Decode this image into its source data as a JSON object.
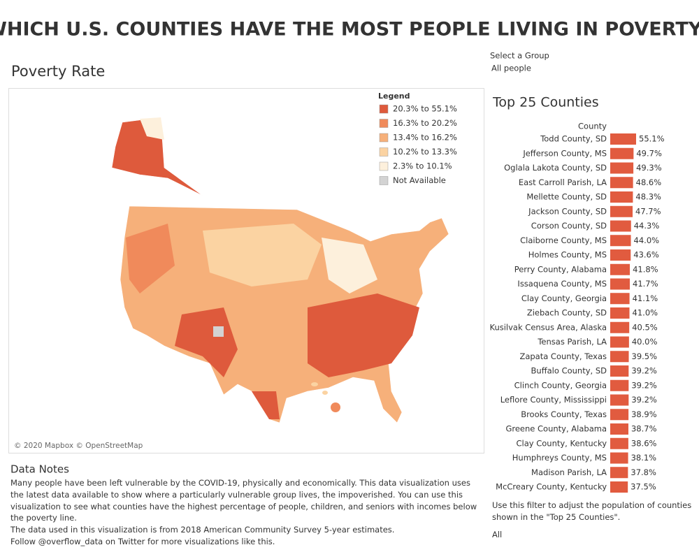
{
  "title": "WHICH U.S. COUNTIES HAVE THE MOST PEOPLE LIVING IN POVERTY?",
  "group_filter": {
    "label": "Select a Group",
    "value": "All people"
  },
  "map": {
    "title": "Poverty Rate",
    "legend_title": "Legend",
    "legend": [
      {
        "label": "20.3% to 55.1%",
        "color": "#de5a3c"
      },
      {
        "label": "16.3% to 20.2%",
        "color": "#f08a5b"
      },
      {
        "label": "13.4% to 16.2%",
        "color": "#f6b07a"
      },
      {
        "label": "10.2% to 13.3%",
        "color": "#fbd3a2"
      },
      {
        "label": "2.3% to 10.1%",
        "color": "#fdf0dc"
      },
      {
        "label": "Not Available",
        "color": "#d3d3d3"
      }
    ],
    "attribution": "© 2020 Mapbox © OpenStreetMap"
  },
  "chart_data": {
    "type": "bar",
    "orientation": "horizontal",
    "title": "Top 25 Counties",
    "axis_label": "County",
    "color": "#e15b3f",
    "categories": [
      "Todd County, SD",
      "Jefferson County, MS",
      "Oglala Lakota County, SD",
      "East Carroll Parish, LA",
      "Mellette County, SD",
      "Jackson County, SD",
      "Corson County, SD",
      "Claiborne County, MS",
      "Holmes County, MS",
      "Perry County, Alabama",
      "Issaquena County, MS",
      "Clay County, Georgia",
      "Ziebach County, SD",
      "Kusilvak Census Area, Alaska",
      "Tensas Parish, LA",
      "Zapata County, Texas",
      "Buffalo County, SD",
      "Clinch County, Georgia",
      "Leflore County, Mississippi",
      "Brooks County, Texas",
      "Greene County, Alabama",
      "Clay County, Kentucky",
      "Humphreys County, MS",
      "Madison Parish, LA",
      "McCreary County, Kentucky"
    ],
    "values": [
      55.1,
      49.7,
      49.3,
      48.6,
      48.3,
      47.7,
      44.3,
      44.0,
      43.6,
      41.8,
      41.7,
      41.1,
      41.0,
      40.5,
      40.0,
      39.5,
      39.2,
      39.2,
      39.2,
      38.9,
      38.7,
      38.6,
      38.1,
      37.8,
      37.5
    ],
    "value_labels": [
      "55.1%",
      "49.7%",
      "49.3%",
      "48.6%",
      "48.3%",
      "47.7%",
      "44.3%",
      "44.0%",
      "43.6%",
      "41.8%",
      "41.7%",
      "41.1%",
      "41.0%",
      "40.5%",
      "40.0%",
      "39.5%",
      "39.2%",
      "39.2%",
      "39.2%",
      "38.9%",
      "38.7%",
      "38.6%",
      "38.1%",
      "37.8%",
      "37.5%"
    ]
  },
  "notes": {
    "title": "Data Notes",
    "paragraphs": [
      "Many people have been left vulnerable by the COVID-19, physically and economically. This data visualization uses the latest data available to show where a particularly vulnerable group lives, the impoverished. You can use this visualization to see what counties have the highest percentage of people, children, and seniors with incomes below the poverty line.",
      "The data used in this visualization is from 2018 American Community Survey 5-year estimates.",
      "Follow @overflow_data on Twitter for more visualizations like this."
    ]
  },
  "population_filter": {
    "text": "Use this filter to adjust the population of counties shown in the \"Top 25 Counties\".",
    "value": "All"
  }
}
